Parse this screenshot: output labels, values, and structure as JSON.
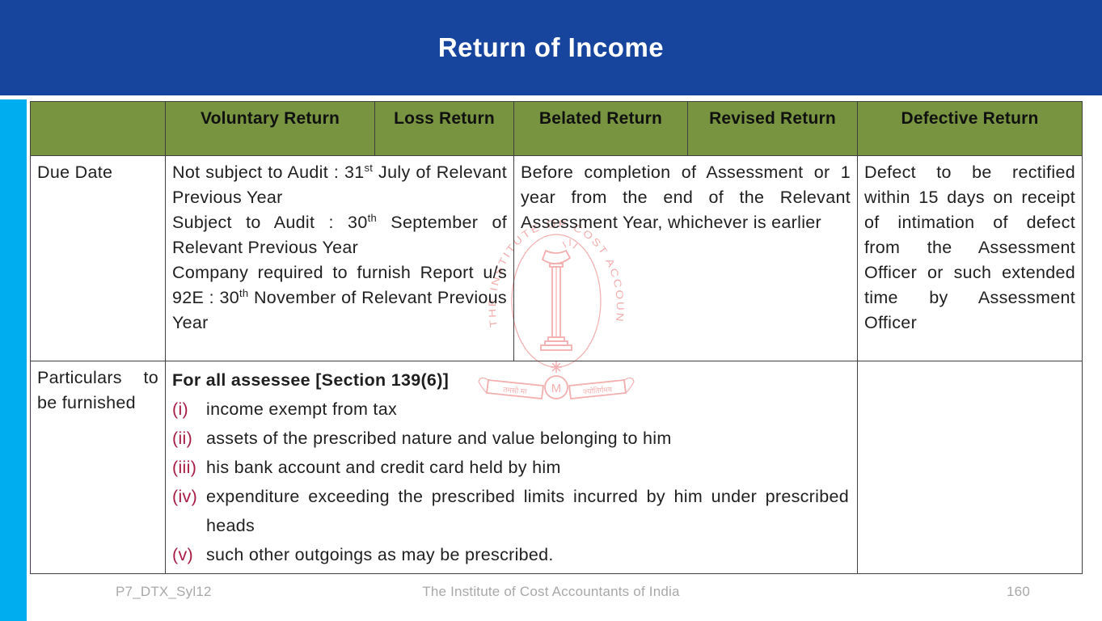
{
  "title": "Return of Income",
  "colors": {
    "title_bar_blue": "#17459e",
    "side_stripe_cyan": "#00aeef",
    "table_header_olive": "#789440",
    "label_cell_green": "#d7e3bf",
    "list_marker_crimson": "#a61c45",
    "watermark_pink": "#f2a0a0",
    "footer_gray": "#a8a8a8"
  },
  "table": {
    "headers": [
      "",
      "Voluntary Return",
      "Loss Return",
      "Belated Return",
      "Revised Return",
      "Defective Return"
    ],
    "rows": {
      "due_date": {
        "label": "Due Date",
        "voluntary_loss": {
          "paragraphs": [
            [
              {
                "t": "Not subject to Audit : 31"
              },
              {
                "sup": "st"
              },
              {
                "t": " July of Relevant Previous Year"
              }
            ],
            [
              {
                "t": "Subject to Audit : 30"
              },
              {
                "sup": "th"
              },
              {
                "t": " September of Relevant Previous Year"
              }
            ],
            [
              {
                "t": "Company required to furnish Report u/s 92E : 30"
              },
              {
                "sup": "th"
              },
              {
                "t": " November of Relevant Previous Year"
              }
            ]
          ]
        },
        "belated_revised": "Before completion of Assessment or 1 year from the end of the Relevant Assessment Year, whichever is earlier",
        "defective": "Defect to be rectified within 15 days on receipt of intimation of defect from the Assessment Officer or such extended time by Assessment Officer"
      },
      "particulars": {
        "label": "Particulars to be furnished",
        "heading": "For all assessee [Section 139(6)]",
        "items": [
          {
            "marker": "(i)",
            "text": "income exempt from tax"
          },
          {
            "marker": "(ii)",
            "text": "assets of the prescribed nature and value belonging to him"
          },
          {
            "marker": "(iii)",
            "text": "his bank account and credit card held by him"
          },
          {
            "marker": "(iv)",
            "text": "expenditure exceeding the prescribed limits incurred by him under prescribed heads"
          },
          {
            "marker": "(v)",
            "text": "such other outgoings as may be prescribed."
          }
        ],
        "defective": ""
      }
    }
  },
  "watermark": {
    "ring_text": "THE INSTITUTE OF COST ACCOUNTANTS OF INDIA",
    "ribbon_text_left": "तमसो मा",
    "ribbon_text_right": "ज्योतिर्गमय",
    "medallion_letter": "M"
  },
  "footer": {
    "course_code": "P7_DTX_Syl12",
    "institute": "The Institute of Cost Accountants of India",
    "page_number": "160"
  }
}
